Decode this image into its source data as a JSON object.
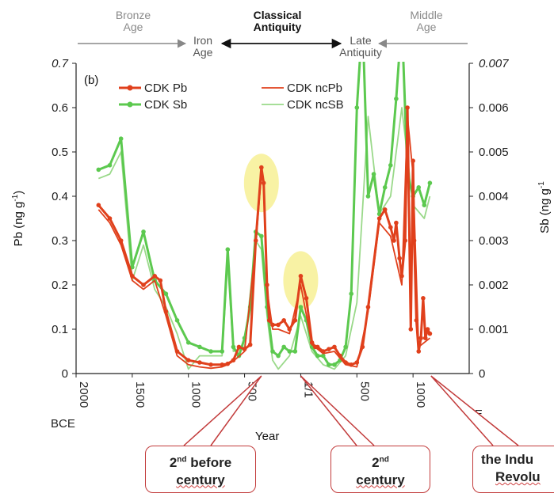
{
  "chart_data": {
    "type": "line",
    "panel_label": "(b)",
    "xlabel": "Year",
    "ylabel_left": "Pb (ng g",
    "ylabel_left_sup": "-1",
    "ylabel_left_end": ")",
    "ylabel_right": "Sb (ng g",
    "ylabel_right_sup": "-1",
    "x_ticks": [
      {
        "label": "2000",
        "year": -2000
      },
      {
        "label": "1500",
        "year": -1500
      },
      {
        "label": "1000",
        "year": -1000
      },
      {
        "label": "500",
        "year": -500
      },
      {
        "label": "1/1",
        "year": 0
      },
      {
        "label": "500",
        "year": 500
      },
      {
        "label": "1000",
        "year": 1000
      }
    ],
    "x_era_left": "BCE",
    "x_era_right": "CE",
    "xlim": [
      -2000,
      1500
    ],
    "ylim_left": [
      0,
      0.7
    ],
    "ylim_right": [
      0,
      0.007
    ],
    "y_ticks_left": [
      "0",
      "0.1",
      "0.2",
      "0.3",
      "0.4",
      "0.5",
      "0.6",
      "0.7"
    ],
    "y_ticks_right": [
      "0",
      "0.001",
      "0.002",
      "0.003",
      "0.004",
      "0.005",
      "0.006",
      "0.007"
    ],
    "series": [
      {
        "name": "CDK Pb",
        "axis": "left",
        "color": "#e0401c",
        "markers": true,
        "x": [
          -1800,
          -1700,
          -1600,
          -1500,
          -1400,
          -1300,
          -1250,
          -1200,
          -1100,
          -1000,
          -900,
          -800,
          -700,
          -650,
          -600,
          -550,
          -500,
          -450,
          -400,
          -350,
          -330,
          -300,
          -280,
          -250,
          -200,
          -150,
          -100,
          -50,
          0,
          50,
          100,
          130,
          150,
          200,
          250,
          300,
          350,
          400,
          450,
          500,
          550,
          600,
          700,
          750,
          800,
          830,
          850,
          880,
          900,
          930,
          950,
          980,
          1000,
          1010,
          1030,
          1050,
          1070,
          1090,
          1110,
          1130,
          1150
        ],
        "y": [
          0.38,
          0.35,
          0.3,
          0.22,
          0.2,
          0.22,
          0.21,
          0.14,
          0.05,
          0.03,
          0.025,
          0.02,
          0.02,
          0.022,
          0.03,
          0.06,
          0.055,
          0.065,
          0.3,
          0.465,
          0.43,
          0.2,
          0.12,
          0.11,
          0.11,
          0.12,
          0.1,
          0.12,
          0.22,
          0.17,
          0.07,
          0.06,
          0.06,
          0.05,
          0.055,
          0.06,
          0.04,
          0.025,
          0.02,
          0.025,
          0.06,
          0.15,
          0.35,
          0.37,
          0.33,
          0.3,
          0.34,
          0.26,
          0.22,
          0.3,
          0.6,
          0.1,
          0.48,
          0.3,
          0.12,
          0.05,
          0.08,
          0.17,
          0.08,
          0.1,
          0.09
        ]
      },
      {
        "name": "CDK ncPb",
        "axis": "left",
        "color": "#e0401c",
        "markers": false,
        "x": [
          -1800,
          -1700,
          -1600,
          -1500,
          -1400,
          -1300,
          -1200,
          -1100,
          -1000,
          -900,
          -800,
          -700,
          -650,
          -600,
          -500,
          -400,
          -350,
          -330,
          -300,
          -250,
          -200,
          -100,
          0,
          100,
          200,
          300,
          400,
          500,
          600,
          700,
          800,
          900,
          950,
          1000,
          1050,
          1100,
          1150
        ],
        "y": [
          0.37,
          0.34,
          0.29,
          0.21,
          0.19,
          0.21,
          0.13,
          0.04,
          0.02,
          0.015,
          0.012,
          0.015,
          0.02,
          0.028,
          0.05,
          0.29,
          0.45,
          0.42,
          0.19,
          0.1,
          0.1,
          0.09,
          0.2,
          0.065,
          0.045,
          0.05,
          0.02,
          0.015,
          0.14,
          0.34,
          0.31,
          0.2,
          0.58,
          0.45,
          0.06,
          0.07,
          0.08
        ]
      },
      {
        "name": "CDK Sb",
        "axis": "right",
        "color": "#5cc94f",
        "markers": true,
        "x": [
          -1800,
          -1700,
          -1600,
          -1500,
          -1400,
          -1300,
          -1200,
          -1100,
          -1000,
          -900,
          -800,
          -700,
          -650,
          -600,
          -550,
          -500,
          -450,
          -400,
          -350,
          -300,
          -250,
          -200,
          -150,
          -100,
          -50,
          0,
          50,
          100,
          150,
          200,
          250,
          300,
          350,
          400,
          450,
          500,
          550,
          600,
          650,
          700,
          750,
          800,
          850,
          900,
          950,
          1000,
          1050,
          1100,
          1150
        ],
        "y": [
          0.0046,
          0.0047,
          0.0053,
          0.0024,
          0.0032,
          0.0021,
          0.0018,
          0.0012,
          0.0007,
          0.0006,
          0.0005,
          0.0005,
          0.0028,
          0.0006,
          0.0004,
          0.0008,
          0.0015,
          0.0032,
          0.0031,
          0.0015,
          0.0005,
          0.0004,
          0.0006,
          0.0005,
          0.0005,
          0.0015,
          0.0012,
          0.0006,
          0.0004,
          0.0004,
          0.0002,
          0.0002,
          0.0003,
          0.0006,
          0.0018,
          0.006,
          0.008,
          0.004,
          0.0045,
          0.0036,
          0.0042,
          0.0047,
          0.0062,
          0.008,
          0.0045,
          0.004,
          0.0042,
          0.0038,
          0.0043
        ]
      },
      {
        "name": "CDK ncSB",
        "axis": "right",
        "color": "#9ad98a",
        "markers": false,
        "x": [
          -1800,
          -1700,
          -1600,
          -1500,
          -1400,
          -1300,
          -1200,
          -1100,
          -1000,
          -900,
          -800,
          -700,
          -650,
          -600,
          -500,
          -400,
          -350,
          -300,
          -250,
          -200,
          -100,
          0,
          100,
          200,
          300,
          400,
          500,
          600,
          700,
          800,
          900,
          1000,
          1100,
          1150
        ],
        "y": [
          0.0044,
          0.0045,
          0.005,
          0.0021,
          0.0029,
          0.0019,
          0.0015,
          0.0009,
          0.0001,
          0.0004,
          0.0004,
          0.0004,
          0.0025,
          0.0005,
          0.0006,
          0.003,
          0.0028,
          0.0013,
          0.0003,
          0.0001,
          0.0004,
          0.0013,
          0.0005,
          0.0002,
          0.0001,
          0.0004,
          0.0016,
          0.0058,
          0.0036,
          0.004,
          0.006,
          0.0038,
          0.0035,
          0.004
        ]
      }
    ],
    "highlights": [
      {
        "year": -350,
        "value": 0.43,
        "color": "#f7f19a"
      },
      {
        "year": 0,
        "value": 0.21,
        "color": "#f7f19a"
      }
    ]
  },
  "eras": {
    "bronze": "Bronze\nAge",
    "iron": "Iron\nAge",
    "classical": "Classical\nAntiquity",
    "late": "Late\nAntiquity",
    "middle": "Middle\nAge"
  },
  "callouts": [
    {
      "line1": "2",
      "sup": "nd",
      "line1b": " before",
      "line2": "century",
      "year": -350
    },
    {
      "line1": "2",
      "sup": "nd",
      "line1b": "",
      "line2": "century",
      "year": 0
    },
    {
      "line1": "the Indu",
      "sup": "",
      "line1b": "",
      "line2": "Revolu",
      "year": 1200
    }
  ]
}
